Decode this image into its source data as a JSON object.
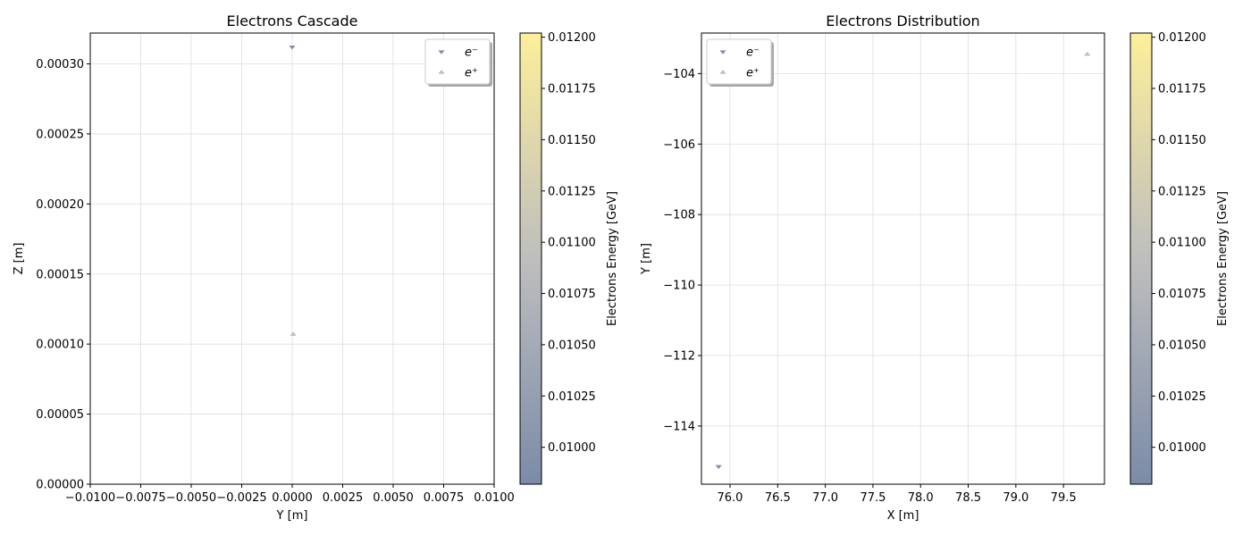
{
  "colors": {
    "cmap_low": "#7b8ba8",
    "cmap_mid": "#bebebe",
    "cmap_high": "#fdef9b",
    "grid": "#dddddd",
    "axis": "#000000"
  },
  "chart_data": [
    {
      "type": "scatter",
      "title": "Electrons Cascade",
      "xlabel": "Y [m]",
      "ylabel": "Z [m]",
      "xlim": [
        -0.01,
        0.01
      ],
      "ylim": [
        0,
        0.000322
      ],
      "xticks": [
        -0.01,
        -0.0075,
        -0.005,
        -0.0025,
        0,
        0.0025,
        0.005,
        0.0075,
        0.01
      ],
      "xtick_labels": [
        "−0.0100",
        "−0.0075",
        "−0.0050",
        "−0.0025",
        "0.0000",
        "0.0025",
        "0.0050",
        "0.0075",
        "0.0100"
      ],
      "yticks": [
        0,
        5e-05,
        0.0001,
        0.00015,
        0.0002,
        0.00025,
        0.0003
      ],
      "ytick_labels": [
        "0.00000",
        "0.00005",
        "0.00010",
        "0.00015",
        "0.00020",
        "0.00025",
        "0.00030"
      ],
      "grid": true,
      "legend_placement": "upper-right",
      "series": [
        {
          "name": "e⁻",
          "marker": "triangle-down",
          "points": [
            {
              "x": 0.0,
              "y": 0.000312,
              "energy": 0.0099
            }
          ]
        },
        {
          "name": "e⁺",
          "marker": "triangle-up",
          "points": [
            {
              "x": 5e-05,
              "y": 0.000107,
              "energy": 0.0109
            }
          ]
        }
      ],
      "colorbar": {
        "label": "Electrons Energy [GeV]",
        "range": [
          0.00982,
          0.01202
        ],
        "ticks": [
          0.01,
          0.01025,
          0.0105,
          0.01075,
          0.011,
          0.01125,
          0.0115,
          0.01175,
          0.012
        ],
        "tick_labels": [
          "0.01000",
          "0.01025",
          "0.01050",
          "0.01075",
          "0.01100",
          "0.01125",
          "0.01150",
          "0.01175",
          "0.01200"
        ]
      }
    },
    {
      "type": "scatter",
      "title": "Electrons Distribution",
      "xlabel": "X [m]",
      "ylabel": "Y [m]",
      "xlim": [
        75.7,
        79.93
      ],
      "ylim": [
        -115.65,
        -102.85
      ],
      "xticks": [
        76,
        76.5,
        77,
        77.5,
        78,
        78.5,
        79,
        79.5
      ],
      "xtick_labels": [
        "76.0",
        "76.5",
        "77.0",
        "77.5",
        "78.0",
        "78.5",
        "79.0",
        "79.5"
      ],
      "yticks": [
        -114,
        -112,
        -110,
        -108,
        -106,
        -104
      ],
      "ytick_labels": [
        "−114",
        "−112",
        "−110",
        "−108",
        "−106",
        "−104"
      ],
      "grid": true,
      "legend_placement": "upper-left",
      "series": [
        {
          "name": "e⁻",
          "marker": "triangle-down",
          "points": [
            {
              "x": 75.88,
              "y": -115.15,
              "energy": 0.0099
            }
          ]
        },
        {
          "name": "e⁺",
          "marker": "triangle-up",
          "points": [
            {
              "x": 79.75,
              "y": -103.45,
              "energy": 0.0109
            }
          ]
        }
      ],
      "colorbar": {
        "label": "Electrons Energy [GeV]",
        "range": [
          0.00982,
          0.01202
        ],
        "ticks": [
          0.01,
          0.01025,
          0.0105,
          0.01075,
          0.011,
          0.01125,
          0.0115,
          0.01175,
          0.012
        ],
        "tick_labels": [
          "0.01000",
          "0.01025",
          "0.01050",
          "0.01075",
          "0.01100",
          "0.01125",
          "0.01150",
          "0.01175",
          "0.01200"
        ]
      }
    }
  ]
}
